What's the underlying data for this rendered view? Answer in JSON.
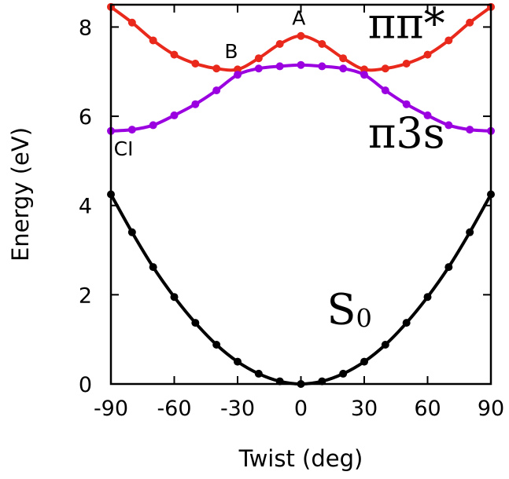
{
  "chart_data": {
    "type": "line",
    "xlabel": "Twist (deg)",
    "ylabel": "Energy (eV)",
    "xlim": [
      -90,
      90
    ],
    "ylim": [
      0,
      8.5
    ],
    "xticks": [
      -90,
      -60,
      -30,
      0,
      30,
      60,
      90
    ],
    "yticks": [
      0,
      2,
      4,
      6,
      8
    ],
    "series": [
      {
        "name": "S0",
        "color": "#000000",
        "x": [
          -90,
          -80,
          -70,
          -60,
          -50,
          -40,
          -30,
          -20,
          -10,
          0,
          10,
          20,
          30,
          40,
          50,
          60,
          70,
          80,
          90
        ],
        "y": [
          4.25,
          3.4,
          2.62,
          1.95,
          1.37,
          0.88,
          0.5,
          0.23,
          0.06,
          0.0,
          0.06,
          0.23,
          0.5,
          0.88,
          1.37,
          1.95,
          2.62,
          3.4,
          4.25
        ]
      },
      {
        "name": "ππ*",
        "color": "#e8291c",
        "x": [
          -90,
          -80,
          -70,
          -60,
          -50,
          -40,
          -30,
          -20,
          -10,
          0,
          10,
          20,
          30,
          40,
          50,
          60,
          70,
          80,
          90
        ],
        "y": [
          8.45,
          8.1,
          7.7,
          7.38,
          7.18,
          7.07,
          7.05,
          7.3,
          7.62,
          7.8,
          7.62,
          7.3,
          7.05,
          7.07,
          7.18,
          7.38,
          7.7,
          8.1,
          8.45
        ]
      },
      {
        "name": "π3s",
        "color": "#9a00e0",
        "x": [
          -90,
          -80,
          -70,
          -60,
          -50,
          -40,
          -30,
          -20,
          -10,
          0,
          10,
          20,
          30,
          40,
          50,
          60,
          70,
          80,
          90
        ],
        "y": [
          5.67,
          5.7,
          5.8,
          6.02,
          6.27,
          6.58,
          6.93,
          7.07,
          7.12,
          7.15,
          7.12,
          7.07,
          6.93,
          6.58,
          6.27,
          6.02,
          5.8,
          5.7,
          5.67
        ]
      }
    ],
    "annotations": [
      {
        "text": "A",
        "x": -1,
        "y": 8.05
      },
      {
        "text": "B",
        "x": -33,
        "y": 7.3
      },
      {
        "text": "CI",
        "x": -84,
        "y": 5.12
      }
    ],
    "state_labels": [
      {
        "main": "ππ*",
        "sub": "",
        "x": 50,
        "y": 7.75
      },
      {
        "main": "π3s",
        "sub": "",
        "x": 50,
        "y": 5.3
      },
      {
        "main": "S",
        "sub": "0",
        "x": 23,
        "y": 1.35
      }
    ]
  }
}
